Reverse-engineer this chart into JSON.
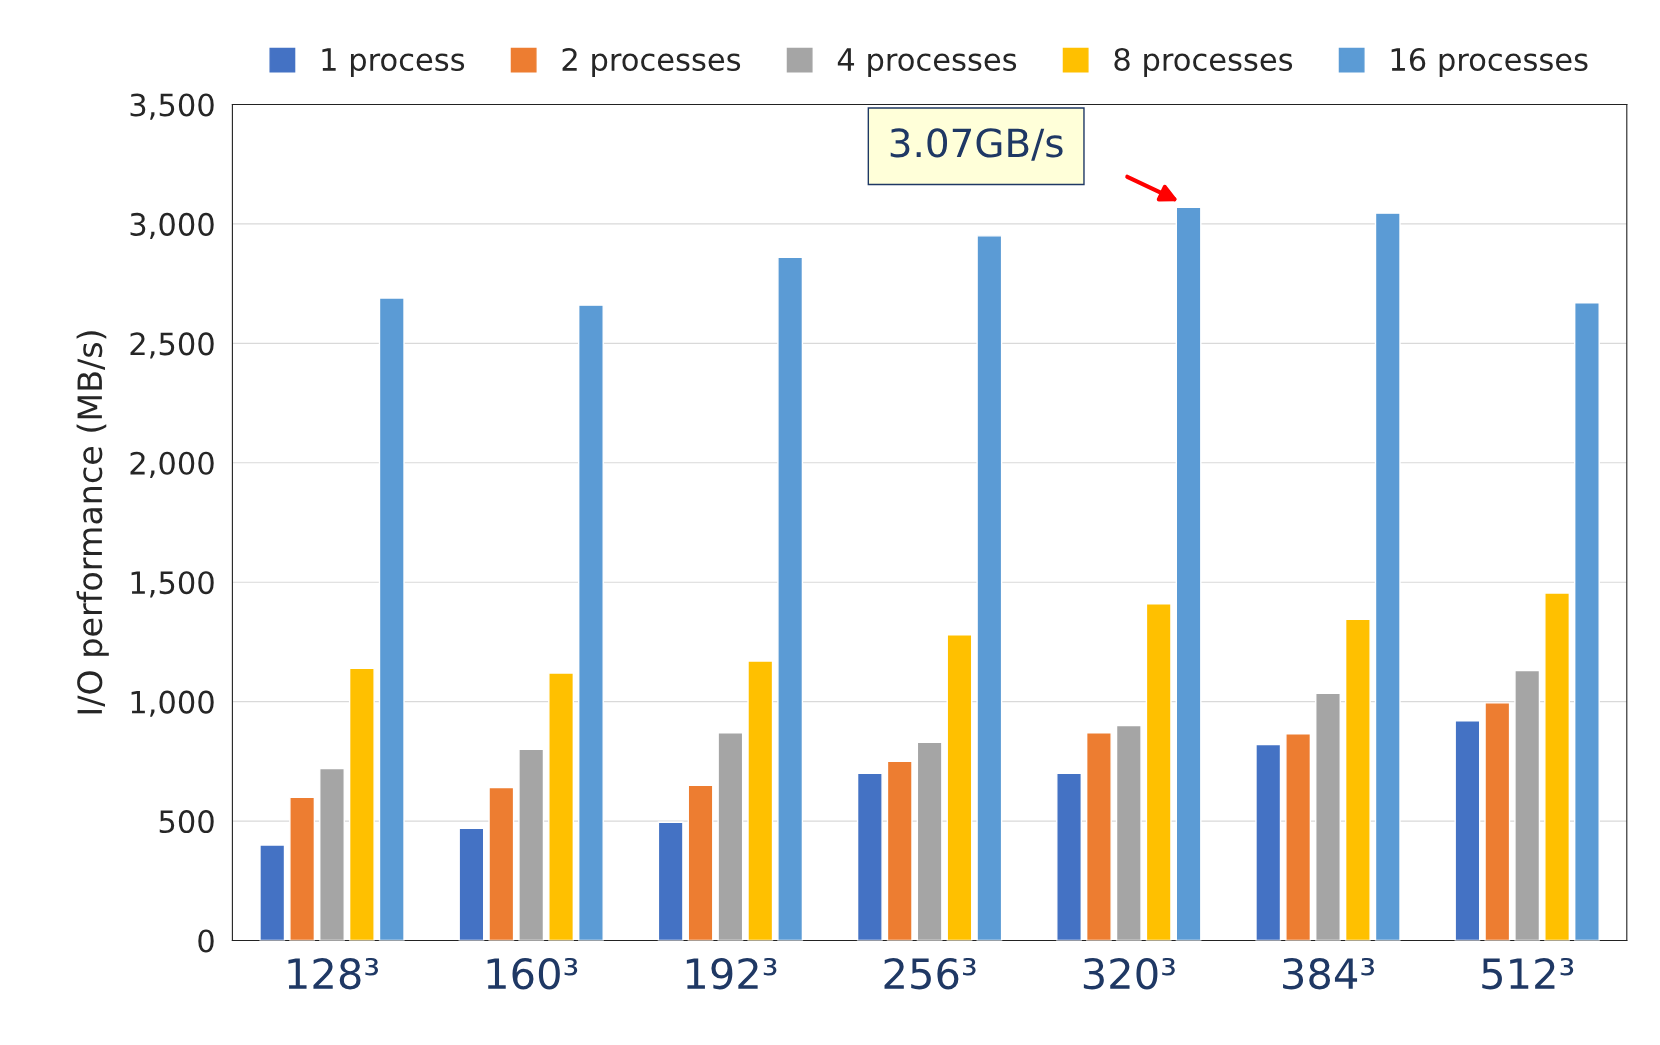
{
  "chart_data": {
    "type": "bar",
    "categories": [
      "128³",
      "160³",
      "192³",
      "256³",
      "320³",
      "384³",
      "512³"
    ],
    "ylabel": "I/O performance (MB/s)",
    "ylim": [
      0,
      3500
    ],
    "yticks": [
      {
        "value": 0,
        "label": "0"
      },
      {
        "value": 500,
        "label": "500"
      },
      {
        "value": 1000,
        "label": "1,000"
      },
      {
        "value": 1500,
        "label": "1,500"
      },
      {
        "value": 2000,
        "label": "2,000"
      },
      {
        "value": 2500,
        "label": "2,500"
      },
      {
        "value": 3000,
        "label": "3,000"
      },
      {
        "value": 3500,
        "label": "3,500"
      }
    ],
    "grid": "y",
    "legend": "top",
    "series": [
      {
        "name": "1 process",
        "color": "#4472c4",
        "values": [
          400,
          470,
          495,
          700,
          700,
          820,
          920
        ]
      },
      {
        "name": "2 processes",
        "color": "#ed7d31",
        "values": [
          600,
          640,
          650,
          750,
          870,
          865,
          995
        ]
      },
      {
        "name": "4 processes",
        "color": "#a5a5a5",
        "values": [
          720,
          800,
          870,
          830,
          900,
          1035,
          1130
        ]
      },
      {
        "name": "8 processes",
        "color": "#ffc000",
        "values": [
          1140,
          1120,
          1170,
          1280,
          1410,
          1345,
          1455
        ]
      },
      {
        "name": "16 processes",
        "color": "#5b9bd5",
        "values": [
          2690,
          2660,
          2860,
          2950,
          3070,
          3045,
          2670
        ]
      }
    ],
    "annotations": [
      "3.07GB/s"
    ]
  }
}
